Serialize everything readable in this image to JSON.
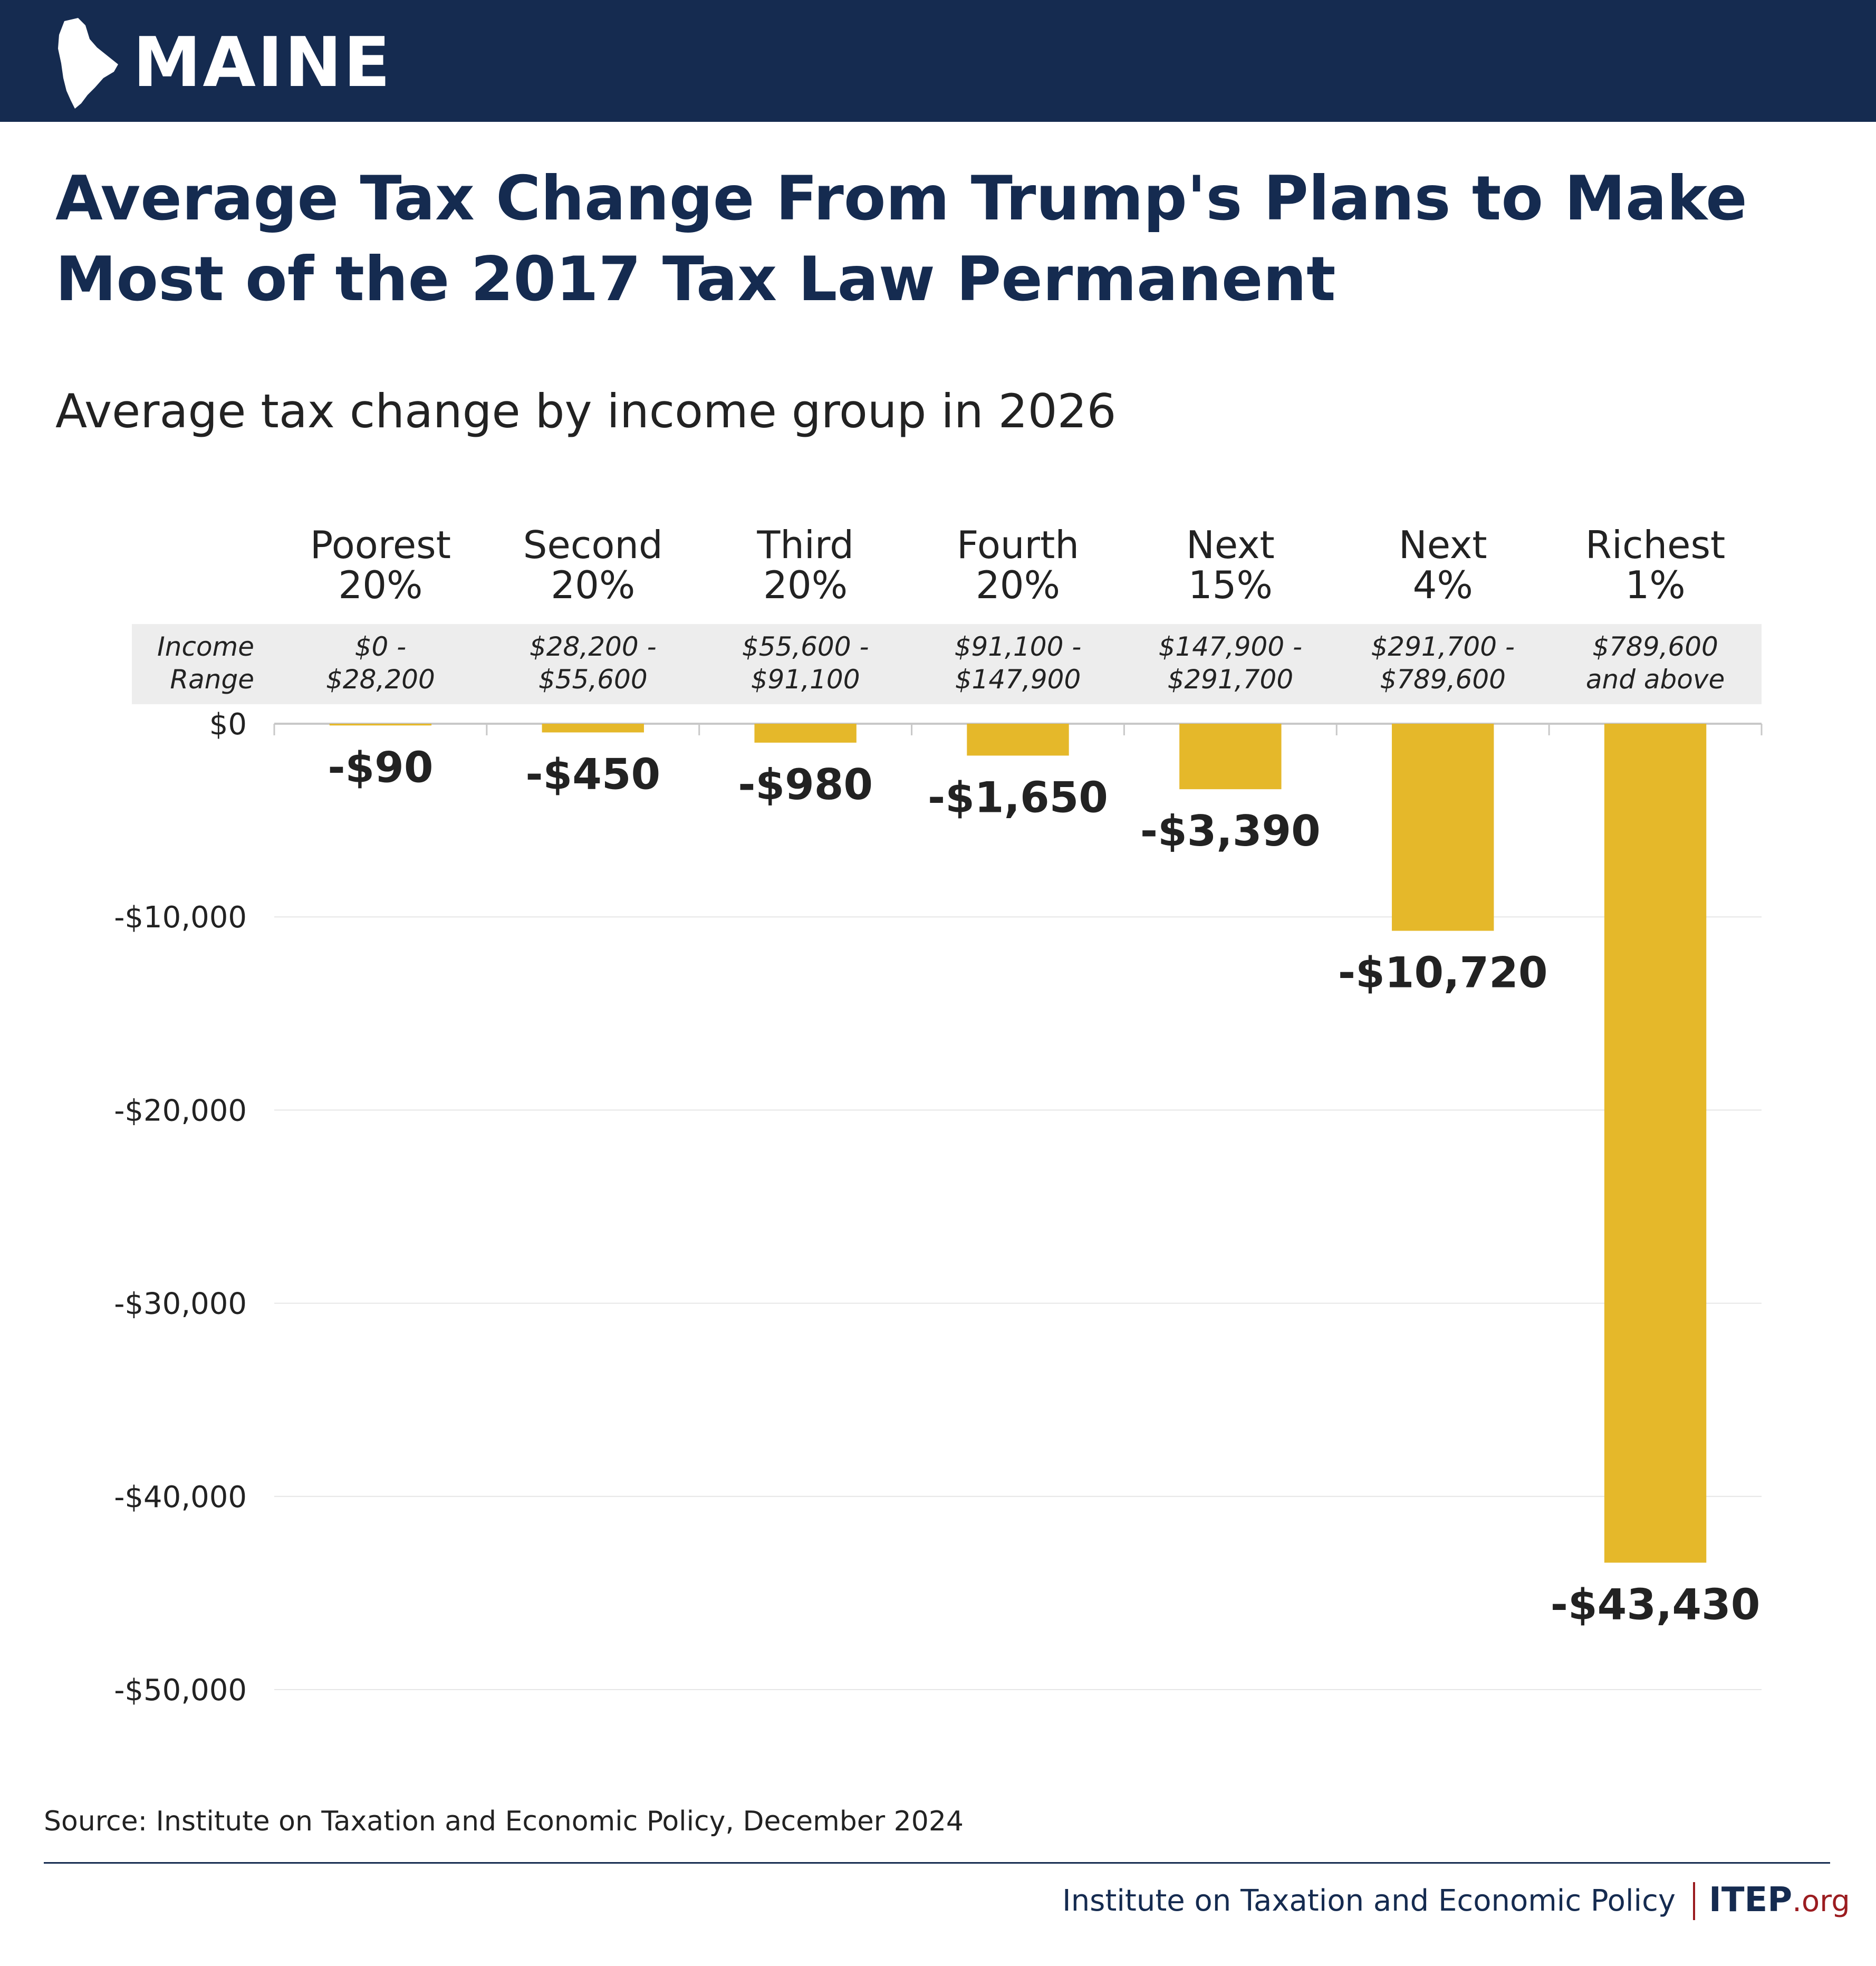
{
  "header": {
    "state_name": "MAINE",
    "state_icon": "maine-outline-icon"
  },
  "title": "Average Tax Change From Trump's Plans to Make Most of the 2017 Tax Law Permanent",
  "subtitle": "Average tax change by income group in 2026",
  "chart_data": {
    "type": "bar",
    "orientation": "vertical",
    "title": "Average Tax Change From Trump's Plans to Make Most of the 2017 Tax Law Permanent",
    "subtitle": "Average tax change by income group in 2026",
    "categories": [
      [
        "Poorest",
        "20%"
      ],
      [
        "Second",
        "20%"
      ],
      [
        "Third",
        "20%"
      ],
      [
        "Fourth",
        "20%"
      ],
      [
        "Next",
        "15%"
      ],
      [
        "Next",
        "4%"
      ],
      [
        "Richest",
        "1%"
      ]
    ],
    "income_range_label": [
      "Income",
      "Range"
    ],
    "income_ranges": [
      [
        "$0 -",
        "$28,200"
      ],
      [
        "$28,200 -",
        "$55,600"
      ],
      [
        "$55,600 -",
        "$91,100"
      ],
      [
        "$91,100 -",
        "$147,900"
      ],
      [
        "$147,900 -",
        "$291,700"
      ],
      [
        "$291,700 -",
        "$789,600"
      ],
      [
        "$789,600",
        "and above"
      ]
    ],
    "values": [
      -90,
      -450,
      -980,
      -1650,
      -3390,
      -10720,
      -43430
    ],
    "value_labels": [
      "-$90",
      "-$450",
      "-$980",
      "-$1,650",
      "-$3,390",
      "-$10,720",
      "-$43,430"
    ],
    "ylim": [
      -50000,
      0
    ],
    "yticks": [
      0,
      -10000,
      -20000,
      -30000,
      -40000,
      -50000
    ],
    "ytick_labels": [
      "$0",
      "-$10,000",
      "-$20,000",
      "-$30,000",
      "-$40,000",
      "-$50,000"
    ],
    "xlabel": "",
    "ylabel": "",
    "grid": true,
    "legend": "none",
    "bar_color": "#e5b82a"
  },
  "source": "Source: Institute on Taxation and Economic Policy, December 2024",
  "footer": {
    "org_name": "Institute on Taxation and Economic Policy",
    "brand_main": "ITEP",
    "brand_tld": ".org"
  },
  "colors": {
    "navy": "#152b50",
    "gold": "#e5b82a",
    "band": "#ededed",
    "grid": "#e6e6e6",
    "brand_red": "#9b1c20"
  }
}
